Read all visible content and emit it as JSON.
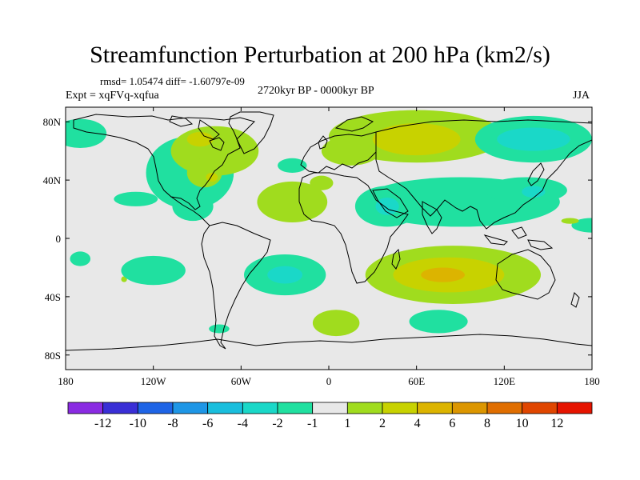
{
  "title": "Streamfunction Perturbation at 200 hPa (km2/s)",
  "stats": "rmsd= 1.05474 diff= -1.60797e-09",
  "expt": "Expt = xqFVq-xqfua",
  "period": "2720kyr BP - 0000kyr BP",
  "season": "JJA",
  "map": {
    "projection": "cylindrical-equidistant",
    "lon_range": [
      -180,
      180
    ],
    "lat_range": [
      -90,
      90
    ],
    "background_color": "#e8e8e8",
    "lon_ticks": [
      {
        "value": -180,
        "label": "180"
      },
      {
        "value": -120,
        "label": "120W"
      },
      {
        "value": -60,
        "label": "60W"
      },
      {
        "value": 0,
        "label": "0"
      },
      {
        "value": 60,
        "label": "60E"
      },
      {
        "value": 120,
        "label": "120E"
      },
      {
        "value": 180,
        "label": "180"
      }
    ],
    "lat_ticks": [
      {
        "value": 80,
        "label": "80N"
      },
      {
        "value": 40,
        "label": "40N"
      },
      {
        "value": 0,
        "label": "0"
      },
      {
        "value": -40,
        "label": "40S"
      },
      {
        "value": -80,
        "label": "80S"
      }
    ]
  },
  "colorbar": {
    "colors": [
      "#8a2be2",
      "#3a2fd6",
      "#1e64e6",
      "#1e96e6",
      "#19bedd",
      "#1ad8c8",
      "#20e0a0",
      "#e8e8e8",
      "#a0dc1e",
      "#c8d200",
      "#dcb400",
      "#dc9600",
      "#e06e00",
      "#e04600",
      "#e61400"
    ],
    "labels": [
      "-12",
      "-10",
      "-8",
      "-6",
      "-4",
      "-2",
      "-1",
      "1",
      "2",
      "4",
      "6",
      "8",
      "10",
      "12"
    ]
  },
  "anomaly_regions": [
    {
      "lon": -170,
      "lat": 72,
      "rx": 18,
      "ry": 10,
      "value": -1.5
    },
    {
      "lon": -170,
      "lat": -14,
      "rx": 7,
      "ry": 5,
      "value": -1.5
    },
    {
      "lon": -132,
      "lat": 27,
      "rx": 15,
      "ry": 5,
      "value": -1.5
    },
    {
      "lon": -140,
      "lat": -28,
      "rx": 2,
      "ry": 2,
      "value": 1.5
    },
    {
      "lon": -95,
      "lat": 45,
      "rx": 30,
      "ry": 25,
      "value": -1.5
    },
    {
      "lon": -93,
      "lat": 22,
      "rx": 14,
      "ry": 10,
      "value": -1.5
    },
    {
      "lon": -78,
      "lat": 60,
      "rx": 30,
      "ry": 17,
      "value": 1.5
    },
    {
      "lon": -85,
      "lat": 45,
      "rx": 12,
      "ry": 10,
      "value": 1.5
    },
    {
      "lon": -88,
      "lat": 68,
      "rx": 9,
      "ry": 5,
      "value": 3
    },
    {
      "lon": -80,
      "lat": 42,
      "rx": 4,
      "ry": 3,
      "value": 3
    },
    {
      "lon": -25,
      "lat": 50,
      "rx": 10,
      "ry": 5,
      "value": -1.5
    },
    {
      "lon": -25,
      "lat": 25,
      "rx": 24,
      "ry": 14,
      "value": 1.5
    },
    {
      "lon": -5,
      "lat": 38,
      "rx": 8,
      "ry": 5,
      "value": 1.5
    },
    {
      "lon": -75,
      "lat": -62,
      "rx": 7,
      "ry": 3,
      "value": -1.5
    },
    {
      "lon": -30,
      "lat": -25,
      "rx": 28,
      "ry": 14,
      "value": -1.5
    },
    {
      "lon": -30,
      "lat": -25,
      "rx": 12,
      "ry": 6,
      "value": -3
    },
    {
      "lon": -120,
      "lat": -22,
      "rx": 22,
      "ry": 10,
      "value": -1.5
    },
    {
      "lon": 5,
      "lat": -58,
      "rx": 16,
      "ry": 9,
      "value": 1.5
    },
    {
      "lon": 75,
      "lat": -57,
      "rx": 20,
      "ry": 8,
      "value": -1.5
    },
    {
      "lon": 90,
      "lat": 25,
      "rx": 68,
      "ry": 17,
      "value": -1.5
    },
    {
      "lon": 40,
      "lat": 22,
      "rx": 22,
      "ry": 14,
      "value": -1.5
    },
    {
      "lon": 40,
      "lat": 22,
      "rx": 8,
      "ry": 6,
      "value": -3
    },
    {
      "lon": 135,
      "lat": 33,
      "rx": 28,
      "ry": 9,
      "value": -1.5
    },
    {
      "lon": 140,
      "lat": 32,
      "rx": 8,
      "ry": 4,
      "value": -3
    },
    {
      "lon": 180,
      "lat": 9,
      "rx": 14,
      "ry": 5,
      "value": -1.5
    },
    {
      "lon": 165,
      "lat": 12,
      "rx": 6,
      "ry": 2,
      "value": 1.5
    },
    {
      "lon": 60,
      "lat": 70,
      "rx": 60,
      "ry": 18,
      "value": 1.5
    },
    {
      "lon": 15,
      "lat": 60,
      "rx": 20,
      "ry": 10,
      "value": 1.5
    },
    {
      "lon": 60,
      "lat": 68,
      "rx": 30,
      "ry": 11,
      "value": 3
    },
    {
      "lon": 140,
      "lat": 68,
      "rx": 40,
      "ry": 16,
      "value": -1.5
    },
    {
      "lon": 140,
      "lat": 68,
      "rx": 25,
      "ry": 8,
      "value": -3
    },
    {
      "lon": 145,
      "lat": 31,
      "rx": 2,
      "ry": 2,
      "value": -3
    },
    {
      "lon": 85,
      "lat": -25,
      "rx": 60,
      "ry": 20,
      "value": 1.5
    },
    {
      "lon": 82,
      "lat": -25,
      "rx": 38,
      "ry": 12,
      "value": 3
    },
    {
      "lon": 78,
      "lat": -25,
      "rx": 15,
      "ry": 5,
      "value": 5
    }
  ]
}
